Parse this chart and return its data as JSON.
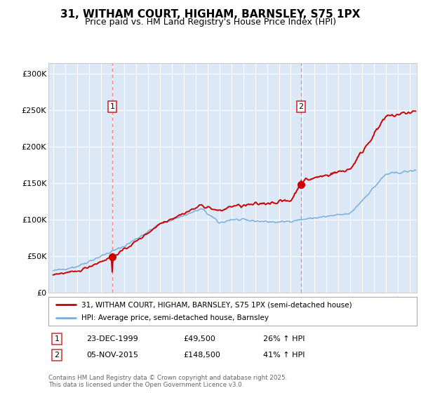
{
  "title": "31, WITHAM COURT, HIGHAM, BARNSLEY, S75 1PX",
  "subtitle": "Price paid vs. HM Land Registry's House Price Index (HPI)",
  "title_fontsize": 11,
  "subtitle_fontsize": 9,
  "background_color": "#ffffff",
  "plot_background": "#dce8f5",
  "grid_color": "#ffffff",
  "ylabel_ticks": [
    "£0",
    "£50K",
    "£100K",
    "£150K",
    "£200K",
    "£250K",
    "£300K"
  ],
  "ytick_values": [
    0,
    50000,
    100000,
    150000,
    200000,
    250000,
    300000
  ],
  "ylim": [
    0,
    315000
  ],
  "xlim_start": 1994.6,
  "xlim_end": 2025.6,
  "purchase1_date": 1999.97,
  "purchase1_price": 49500,
  "purchase2_date": 2015.85,
  "purchase2_price": 148500,
  "line1_color": "#cc0000",
  "line2_color": "#7aaddc",
  "marker_color": "#cc0000",
  "dashed_line_color": "#ee8888",
  "legend_line1": "31, WITHAM COURT, HIGHAM, BARNSLEY, S75 1PX (semi-detached house)",
  "legend_line2": "HPI: Average price, semi-detached house, Barnsley",
  "footnote": "Contains HM Land Registry data © Crown copyright and database right 2025.\nThis data is licensed under the Open Government Licence v3.0."
}
